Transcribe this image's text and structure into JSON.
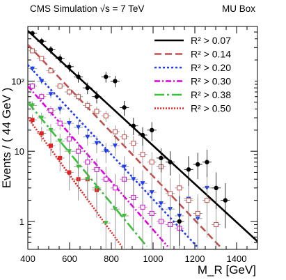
{
  "header": {
    "left_text": "CMS Simulation  √s = 7 TeV",
    "right_text": "MU Box"
  },
  "chart_data": {
    "type": "scatter",
    "title": "",
    "xlabel": "M_R [GeV]",
    "ylabel": "Events / ( 44 GeV )",
    "xlim": [
      400,
      1500
    ],
    "ylim": [
      0.4,
      600
    ],
    "yscale": "log",
    "x_ticks": [
      "400",
      "600",
      "800",
      "1000",
      "1200",
      "1400"
    ],
    "y_ticks": [
      {
        "value": 1,
        "label": "1"
      },
      {
        "value": 10,
        "label": "10"
      },
      {
        "value": 100,
        "label": "10²"
      }
    ],
    "legend_position": "top-right",
    "series": [
      {
        "name": "R² > 0.07",
        "color": "#000000",
        "dash": "solid",
        "marker": "circle",
        "fit": [
          [
            400,
            520
          ],
          [
            1500,
            0.52
          ]
        ],
        "points": [
          [
            422,
            480
          ],
          [
            466,
            370
          ],
          [
            510,
            280
          ],
          [
            554,
            210
          ],
          [
            598,
            160
          ],
          [
            642,
            115
          ],
          [
            686,
            80
          ],
          [
            730,
            60
          ],
          [
            774,
            115
          ],
          [
            818,
            100
          ],
          [
            862,
            42
          ],
          [
            906,
            23
          ],
          [
            950,
            17
          ],
          [
            994,
            20
          ],
          [
            1038,
            8
          ],
          [
            1082,
            7
          ],
          [
            1126,
            1
          ],
          [
            1170,
            5.5
          ],
          [
            1214,
            6.5
          ],
          [
            1258,
            7
          ],
          [
            1302,
            3
          ],
          [
            1346,
            2
          ]
        ],
        "errors_lo": [
          [
            422,
            440
          ],
          [
            466,
            330
          ],
          [
            510,
            245
          ],
          [
            554,
            180
          ],
          [
            598,
            135
          ],
          [
            642,
            95
          ],
          [
            686,
            65
          ],
          [
            730,
            48
          ],
          [
            774,
            95
          ],
          [
            818,
            82
          ],
          [
            862,
            32
          ],
          [
            906,
            17
          ],
          [
            950,
            12
          ],
          [
            994,
            14
          ],
          [
            1038,
            5
          ],
          [
            1082,
            4.5
          ],
          [
            1126,
            0.45
          ],
          [
            1170,
            3.2
          ],
          [
            1214,
            4
          ],
          [
            1258,
            4.3
          ],
          [
            1302,
            1.5
          ],
          [
            1346,
            0.8
          ]
        ],
        "errors_hi": [
          [
            422,
            520
          ],
          [
            466,
            410
          ],
          [
            510,
            315
          ],
          [
            554,
            240
          ],
          [
            598,
            185
          ],
          [
            642,
            135
          ],
          [
            686,
            95
          ],
          [
            730,
            72
          ],
          [
            774,
            135
          ],
          [
            818,
            118
          ],
          [
            862,
            52
          ],
          [
            906,
            30
          ],
          [
            950,
            22
          ],
          [
            994,
            26
          ],
          [
            1038,
            11
          ],
          [
            1082,
            10
          ],
          [
            1126,
            2.3
          ],
          [
            1170,
            8.5
          ],
          [
            1214,
            9.5
          ],
          [
            1258,
            10.5
          ],
          [
            1302,
            5
          ],
          [
            1346,
            3.5
          ]
        ]
      },
      {
        "name": "R² > 0.14",
        "color": "#c0504d",
        "dash": "10,5",
        "marker": "open-square",
        "fit": [
          [
            400,
            330
          ],
          [
            1320,
            0.44
          ]
        ],
        "points": [
          [
            422,
            270
          ],
          [
            466,
            210
          ],
          [
            510,
            140
          ],
          [
            554,
            85
          ],
          [
            598,
            70
          ],
          [
            642,
            60
          ],
          [
            686,
            45
          ],
          [
            730,
            37
          ],
          [
            774,
            32
          ],
          [
            818,
            19
          ],
          [
            862,
            16
          ],
          [
            906,
            13
          ],
          [
            950,
            9
          ],
          [
            994,
            7
          ],
          [
            1038,
            6
          ],
          [
            1082,
            2.5
          ],
          [
            1126,
            3
          ],
          [
            1170,
            2
          ],
          [
            1214,
            1.3
          ],
          [
            1258,
            2
          ],
          [
            1302,
            0.9
          ]
        ]
      },
      {
        "name": "R² > 0.20",
        "color": "#1f3cf0",
        "dash": "3,3",
        "marker": "down-triangle",
        "fit": [
          [
            400,
            170
          ],
          [
            1210,
            0.44
          ]
        ],
        "points": [
          [
            422,
            150
          ],
          [
            466,
            100
          ],
          [
            510,
            65
          ],
          [
            554,
            40
          ],
          [
            598,
            25
          ],
          [
            642,
            22
          ],
          [
            686,
            16
          ],
          [
            730,
            13
          ],
          [
            774,
            10
          ],
          [
            818,
            12
          ],
          [
            862,
            6
          ],
          [
            906,
            4
          ],
          [
            950,
            3.5
          ],
          [
            994,
            2.6
          ],
          [
            1038,
            1.8
          ],
          [
            1082,
            1.5
          ],
          [
            1126,
            1.2
          ],
          [
            1170,
            2.1
          ],
          [
            1214,
            1.1
          ],
          [
            1258,
            3
          ]
        ]
      },
      {
        "name": "R² > 0.30",
        "color": "#e000e0",
        "dash": "8,3,2,3",
        "marker": "open-square",
        "fit": [
          [
            400,
            85
          ],
          [
            1070,
            0.44
          ]
        ],
        "points": [
          [
            422,
            85
          ],
          [
            466,
            60
          ],
          [
            510,
            38
          ],
          [
            554,
            25
          ],
          [
            598,
            15
          ],
          [
            642,
            10
          ],
          [
            686,
            7
          ],
          [
            730,
            5.5
          ],
          [
            774,
            4
          ],
          [
            818,
            3
          ],
          [
            862,
            4
          ],
          [
            906,
            2.2
          ],
          [
            950,
            1.6
          ],
          [
            994,
            1.3
          ],
          [
            1038,
            1
          ],
          [
            1082,
            0.9
          ],
          [
            1126,
            0.8
          ]
        ]
      },
      {
        "name": "R² > 0.38",
        "color": "#3cbf3c",
        "dash": "14,4,3,4",
        "marker": "down-triangle",
        "fit": [
          [
            400,
            50
          ],
          [
            970,
            0.44
          ]
        ],
        "points": [
          [
            422,
            45
          ],
          [
            466,
            30
          ],
          [
            510,
            20
          ],
          [
            554,
            14
          ],
          [
            598,
            10
          ],
          [
            642,
            6
          ],
          [
            686,
            4
          ],
          [
            730,
            3
          ],
          [
            774,
            0.95
          ],
          [
            818,
            1.5
          ],
          [
            862,
            1.2
          ]
        ]
      },
      {
        "name": "R² > 0.50",
        "color": "#e52222",
        "dash": "2,2",
        "marker": "filled-square",
        "fit": [
          [
            400,
            30
          ],
          [
            850,
            0.44
          ]
        ],
        "points": [
          [
            422,
            28
          ],
          [
            466,
            18
          ],
          [
            510,
            12
          ],
          [
            554,
            8
          ],
          [
            598,
            5
          ],
          [
            642,
            4
          ],
          [
            686,
            4
          ],
          [
            730,
            2.8
          ]
        ]
      }
    ]
  }
}
